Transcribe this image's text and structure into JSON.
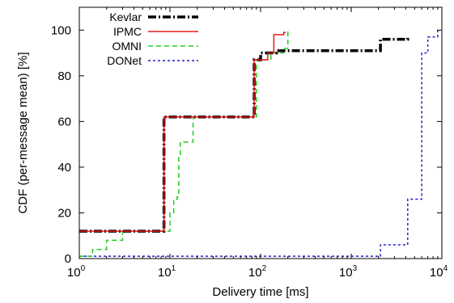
{
  "chart_data": {
    "type": "line",
    "xlabel": "Delivery time [ms]",
    "ylabel": "CDF (per-message mean) [%]",
    "xscale": "log",
    "xlim": [
      1,
      10000
    ],
    "ylim": [
      0,
      110
    ],
    "x_ticks": [
      {
        "value": 1,
        "base": "10",
        "exp": "0"
      },
      {
        "value": 10,
        "base": "10",
        "exp": "1"
      },
      {
        "value": 100,
        "base": "10",
        "exp": "2"
      },
      {
        "value": 1000,
        "base": "10",
        "exp": "3"
      },
      {
        "value": 10000,
        "base": "10",
        "exp": "4"
      }
    ],
    "y_ticks": [
      {
        "value": 0,
        "label": "0"
      },
      {
        "value": 20,
        "label": "20"
      },
      {
        "value": 40,
        "label": "40"
      },
      {
        "value": 60,
        "label": "60"
      },
      {
        "value": 80,
        "label": "80"
      },
      {
        "value": 100,
        "label": "100"
      }
    ],
    "grid": false,
    "legend_position": "top-left",
    "series": [
      {
        "name": "Kevlar",
        "color": "#000000",
        "dash": "10,3,2,3",
        "width": 3.5,
        "points": [
          [
            1,
            12
          ],
          [
            8,
            12
          ],
          [
            8.6,
            62
          ],
          [
            75,
            62
          ],
          [
            85,
            87
          ],
          [
            100,
            90
          ],
          [
            150,
            91
          ],
          [
            2000,
            91
          ],
          [
            2100,
            96
          ],
          [
            4000,
            96
          ],
          [
            4200,
            97
          ]
        ]
      },
      {
        "name": "IPMC",
        "color": "#e41a1c",
        "dash": "",
        "width": 1.5,
        "points": [
          [
            1,
            12
          ],
          [
            8,
            12
          ],
          [
            8.6,
            62
          ],
          [
            75,
            62
          ],
          [
            85,
            87
          ],
          [
            120,
            90
          ],
          [
            140,
            98
          ],
          [
            180,
            99
          ],
          [
            190,
            99
          ]
        ]
      },
      {
        "name": "OMNI",
        "color": "#22cc22",
        "dash": "6,4",
        "width": 1.5,
        "points": [
          [
            1,
            1
          ],
          [
            1.4,
            4
          ],
          [
            2,
            8
          ],
          [
            3,
            12
          ],
          [
            9,
            12
          ],
          [
            10,
            20
          ],
          [
            11,
            26
          ],
          [
            12,
            27
          ],
          [
            12.5,
            45
          ],
          [
            13,
            51
          ],
          [
            16,
            51
          ],
          [
            18,
            62
          ],
          [
            80,
            62
          ],
          [
            90,
            87
          ],
          [
            130,
            90
          ],
          [
            180,
            92
          ],
          [
            200,
            100
          ]
        ]
      },
      {
        "name": "DONet",
        "color": "#1f1fcc",
        "dash": "3,3",
        "width": 1.5,
        "points": [
          [
            1,
            1
          ],
          [
            2000,
            1
          ],
          [
            2100,
            6
          ],
          [
            4000,
            6
          ],
          [
            4200,
            26
          ],
          [
            5500,
            26
          ],
          [
            6000,
            90
          ],
          [
            7000,
            97
          ],
          [
            8000,
            97
          ],
          [
            9000,
            100
          ]
        ]
      }
    ]
  }
}
